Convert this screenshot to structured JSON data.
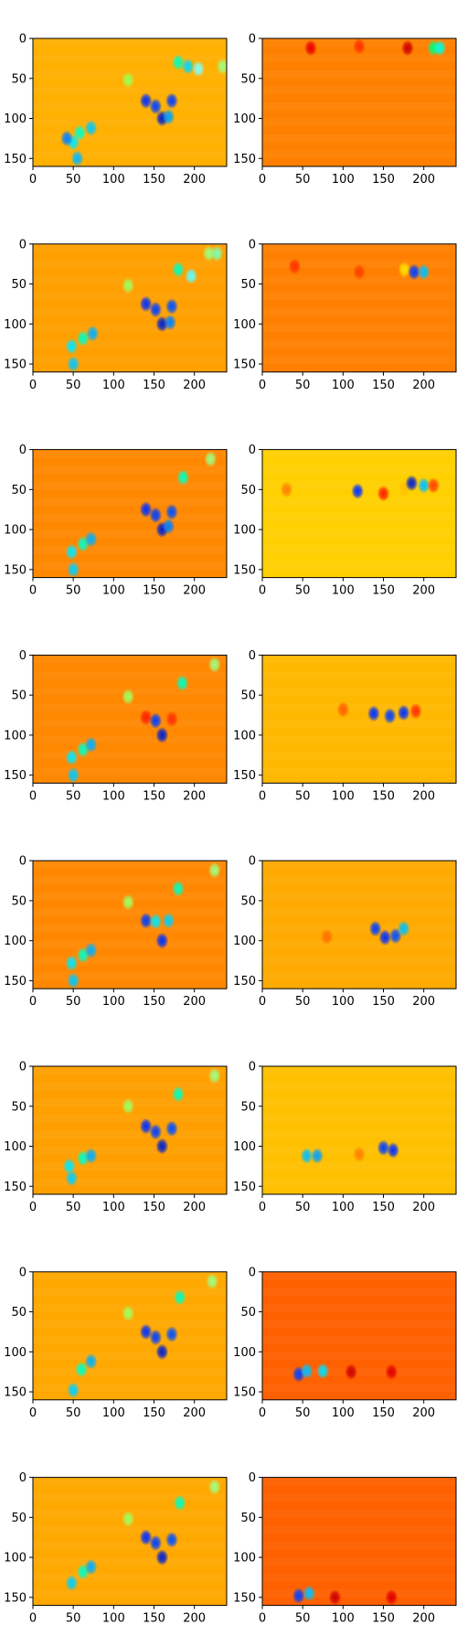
{
  "figure": {
    "background": "#ffffff",
    "colormap": "jet",
    "xticks": [
      "0",
      "50",
      "100",
      "150",
      "200"
    ],
    "yticks": [
      "0",
      "50",
      "100",
      "150"
    ]
  },
  "chart_data": [
    {
      "type": "heatmap",
      "row": 1,
      "col": 1,
      "xlim": [
        0,
        240
      ],
      "ylim": [
        160,
        0
      ],
      "background_color": "#ffb000",
      "blobs": [
        [
          55,
          150,
          "#00b8ff"
        ],
        [
          50,
          130,
          "#00e8ff"
        ],
        [
          58,
          118,
          "#00ffd0"
        ],
        [
          72,
          112,
          "#00c8ff"
        ],
        [
          42,
          125,
          "#0080ff"
        ],
        [
          118,
          52,
          "#a0ff50"
        ],
        [
          140,
          78,
          "#0030ff"
        ],
        [
          152,
          85,
          "#0040ff"
        ],
        [
          160,
          100,
          "#0020d0"
        ],
        [
          168,
          98,
          "#00a0ff"
        ],
        [
          172,
          78,
          "#0040ff"
        ],
        [
          180,
          30,
          "#00ffc0"
        ],
        [
          192,
          35,
          "#00d8ff"
        ],
        [
          205,
          38,
          "#80ffff"
        ],
        [
          235,
          35,
          "#a0ff80"
        ]
      ]
    },
    {
      "type": "heatmap",
      "row": 1,
      "col": 2,
      "xlim": [
        0,
        240
      ],
      "ylim": [
        160,
        0
      ],
      "background_color": "#ff8000",
      "blobs": [
        [
          60,
          12,
          "#e80000"
        ],
        [
          120,
          10,
          "#ff3000"
        ],
        [
          180,
          12,
          "#d00000"
        ],
        [
          212,
          12,
          "#00ff80"
        ],
        [
          220,
          12,
          "#00ffe0"
        ]
      ]
    },
    {
      "type": "heatmap",
      "row": 2,
      "col": 1,
      "xlim": [
        0,
        240
      ],
      "ylim": [
        160,
        0
      ],
      "background_color": "#ffa000",
      "blobs": [
        [
          50,
          150,
          "#00c8ff"
        ],
        [
          48,
          128,
          "#00e8ff"
        ],
        [
          62,
          118,
          "#00ffc8"
        ],
        [
          74,
          112,
          "#00b0ff"
        ],
        [
          118,
          52,
          "#a0ff60"
        ],
        [
          140,
          75,
          "#0030ff"
        ],
        [
          152,
          82,
          "#0040ff"
        ],
        [
          160,
          100,
          "#0020d0"
        ],
        [
          170,
          98,
          "#0080ff"
        ],
        [
          172,
          78,
          "#0050ff"
        ],
        [
          180,
          32,
          "#00ffc0"
        ],
        [
          196,
          40,
          "#60ffff"
        ],
        [
          218,
          12,
          "#a0ff80"
        ],
        [
          228,
          12,
          "#80ffb0"
        ]
      ]
    },
    {
      "type": "heatmap",
      "row": 2,
      "col": 2,
      "xlim": [
        0,
        240
      ],
      "ylim": [
        160,
        0
      ],
      "background_color": "#ff8000",
      "blobs": [
        [
          40,
          28,
          "#ff3000"
        ],
        [
          120,
          35,
          "#ff4000"
        ],
        [
          176,
          32,
          "#ffe000"
        ],
        [
          188,
          35,
          "#0040ff"
        ],
        [
          200,
          35,
          "#00c0ff"
        ]
      ]
    },
    {
      "type": "heatmap",
      "row": 3,
      "col": 1,
      "xlim": [
        0,
        240
      ],
      "ylim": [
        160,
        0
      ],
      "background_color": "#ff8800",
      "blobs": [
        [
          50,
          150,
          "#00d0ff"
        ],
        [
          48,
          128,
          "#00e8ff"
        ],
        [
          62,
          118,
          "#00ffc8"
        ],
        [
          72,
          112,
          "#00b0ff"
        ],
        [
          140,
          75,
          "#0030ff"
        ],
        [
          152,
          82,
          "#0040ff"
        ],
        [
          160,
          100,
          "#0020d0"
        ],
        [
          168,
          96,
          "#0080ff"
        ],
        [
          172,
          78,
          "#0050ff"
        ],
        [
          186,
          35,
          "#00ffc0"
        ],
        [
          220,
          12,
          "#a0ff80"
        ]
      ]
    },
    {
      "type": "heatmap",
      "row": 3,
      "col": 2,
      "xlim": [
        0,
        240
      ],
      "ylim": [
        160,
        0
      ],
      "background_color": "#ffd000",
      "blobs": [
        [
          30,
          50,
          "#ff8000"
        ],
        [
          118,
          52,
          "#0030ff"
        ],
        [
          150,
          55,
          "#ff2000"
        ],
        [
          176,
          48,
          "#ffc000"
        ],
        [
          185,
          42,
          "#0020d0"
        ],
        [
          200,
          45,
          "#00c0ff"
        ],
        [
          212,
          45,
          "#ff4000"
        ]
      ]
    },
    {
      "type": "heatmap",
      "row": 4,
      "col": 1,
      "xlim": [
        0,
        240
      ],
      "ylim": [
        160,
        0
      ],
      "background_color": "#ff8800",
      "blobs": [
        [
          50,
          150,
          "#00c8ff"
        ],
        [
          48,
          128,
          "#00e8ff"
        ],
        [
          62,
          118,
          "#00ffc8"
        ],
        [
          72,
          112,
          "#00b0ff"
        ],
        [
          118,
          52,
          "#a0ff60"
        ],
        [
          140,
          78,
          "#ff2000"
        ],
        [
          152,
          82,
          "#0040ff"
        ],
        [
          160,
          100,
          "#0020d0"
        ],
        [
          172,
          80,
          "#ff3000"
        ],
        [
          185,
          35,
          "#00ffc0"
        ],
        [
          225,
          12,
          "#a0ff80"
        ]
      ]
    },
    {
      "type": "heatmap",
      "row": 4,
      "col": 2,
      "xlim": [
        0,
        240
      ],
      "ylim": [
        160,
        0
      ],
      "background_color": "#ffb800",
      "blobs": [
        [
          100,
          68,
          "#ff6000"
        ],
        [
          138,
          73,
          "#0030ff"
        ],
        [
          158,
          76,
          "#0040ff"
        ],
        [
          175,
          72,
          "#0030ff"
        ],
        [
          190,
          70,
          "#ff3000"
        ]
      ]
    },
    {
      "type": "heatmap",
      "row": 5,
      "col": 1,
      "xlim": [
        0,
        240
      ],
      "ylim": [
        160,
        0
      ],
      "background_color": "#ff8800",
      "blobs": [
        [
          50,
          150,
          "#00c8ff"
        ],
        [
          48,
          128,
          "#00e8ff"
        ],
        [
          62,
          118,
          "#00ffc8"
        ],
        [
          72,
          112,
          "#00b0ff"
        ],
        [
          118,
          52,
          "#a0ff60"
        ],
        [
          140,
          75,
          "#0040ff"
        ],
        [
          152,
          76,
          "#00e8ff"
        ],
        [
          160,
          100,
          "#0030ff"
        ],
        [
          168,
          75,
          "#00d0ff"
        ],
        [
          180,
          35,
          "#00ffc0"
        ],
        [
          225,
          12,
          "#a0ff80"
        ]
      ]
    },
    {
      "type": "heatmap",
      "row": 5,
      "col": 2,
      "xlim": [
        0,
        240
      ],
      "ylim": [
        160,
        0
      ],
      "background_color": "#ffaa00",
      "blobs": [
        [
          80,
          95,
          "#ff7000"
        ],
        [
          140,
          85,
          "#0040ff"
        ],
        [
          152,
          96,
          "#0030ff"
        ],
        [
          165,
          94,
          "#0050ff"
        ],
        [
          175,
          85,
          "#00c0ff"
        ]
      ]
    },
    {
      "type": "heatmap",
      "row": 6,
      "col": 1,
      "xlim": [
        0,
        240
      ],
      "ylim": [
        160,
        0
      ],
      "background_color": "#ffa000",
      "blobs": [
        [
          48,
          140,
          "#00d0ff"
        ],
        [
          45,
          125,
          "#00e8ff"
        ],
        [
          62,
          115,
          "#00ffc8"
        ],
        [
          72,
          112,
          "#00b0ff"
        ],
        [
          118,
          50,
          "#a0ff60"
        ],
        [
          140,
          75,
          "#0030ff"
        ],
        [
          152,
          82,
          "#0040ff"
        ],
        [
          160,
          100,
          "#0020d0"
        ],
        [
          172,
          78,
          "#0050ff"
        ],
        [
          180,
          35,
          "#00ffc0"
        ],
        [
          225,
          12,
          "#a0ff80"
        ]
      ]
    },
    {
      "type": "heatmap",
      "row": 6,
      "col": 2,
      "xlim": [
        0,
        240
      ],
      "ylim": [
        160,
        0
      ],
      "background_color": "#ffc000",
      "blobs": [
        [
          55,
          112,
          "#00c0ff"
        ],
        [
          68,
          112,
          "#00a0ff"
        ],
        [
          150,
          102,
          "#0040ff"
        ],
        [
          162,
          105,
          "#0030ff"
        ],
        [
          120,
          110,
          "#ff8000"
        ]
      ]
    },
    {
      "type": "heatmap",
      "row": 7,
      "col": 1,
      "xlim": [
        0,
        240
      ],
      "ylim": [
        160,
        0
      ],
      "background_color": "#ffa800",
      "blobs": [
        [
          50,
          148,
          "#00d0ff"
        ],
        [
          60,
          122,
          "#00ffc8"
        ],
        [
          72,
          112,
          "#00b0ff"
        ],
        [
          118,
          52,
          "#a0ff60"
        ],
        [
          140,
          75,
          "#0030ff"
        ],
        [
          152,
          82,
          "#0040ff"
        ],
        [
          160,
          100,
          "#0020d0"
        ],
        [
          172,
          78,
          "#0050ff"
        ],
        [
          182,
          32,
          "#00ffc0"
        ],
        [
          222,
          12,
          "#a0ff80"
        ]
      ]
    },
    {
      "type": "heatmap",
      "row": 7,
      "col": 2,
      "xlim": [
        0,
        240
      ],
      "ylim": [
        160,
        0
      ],
      "background_color": "#ff6000",
      "blobs": [
        [
          45,
          128,
          "#0040ff"
        ],
        [
          55,
          124,
          "#00c0ff"
        ],
        [
          75,
          124,
          "#00e0ff"
        ],
        [
          110,
          125,
          "#d00000"
        ],
        [
          160,
          125,
          "#e00000"
        ]
      ]
    },
    {
      "type": "heatmap",
      "row": 8,
      "col": 1,
      "xlim": [
        0,
        240
      ],
      "ylim": [
        160,
        0
      ],
      "background_color": "#ffa800",
      "blobs": [
        [
          48,
          132,
          "#00d0ff"
        ],
        [
          62,
          118,
          "#00ffc8"
        ],
        [
          72,
          112,
          "#00b0ff"
        ],
        [
          118,
          52,
          "#a0ff60"
        ],
        [
          140,
          75,
          "#0030ff"
        ],
        [
          152,
          82,
          "#0040ff"
        ],
        [
          160,
          100,
          "#0020d0"
        ],
        [
          172,
          78,
          "#0050ff"
        ],
        [
          182,
          32,
          "#00ffc0"
        ],
        [
          225,
          12,
          "#a0ff80"
        ]
      ]
    },
    {
      "type": "heatmap",
      "row": 8,
      "col": 2,
      "xlim": [
        0,
        240
      ],
      "ylim": [
        160,
        0
      ],
      "background_color": "#ff6000",
      "blobs": [
        [
          45,
          148,
          "#0040ff"
        ],
        [
          58,
          145,
          "#00c0ff"
        ],
        [
          90,
          150,
          "#d00000"
        ],
        [
          160,
          150,
          "#e00000"
        ]
      ]
    }
  ]
}
